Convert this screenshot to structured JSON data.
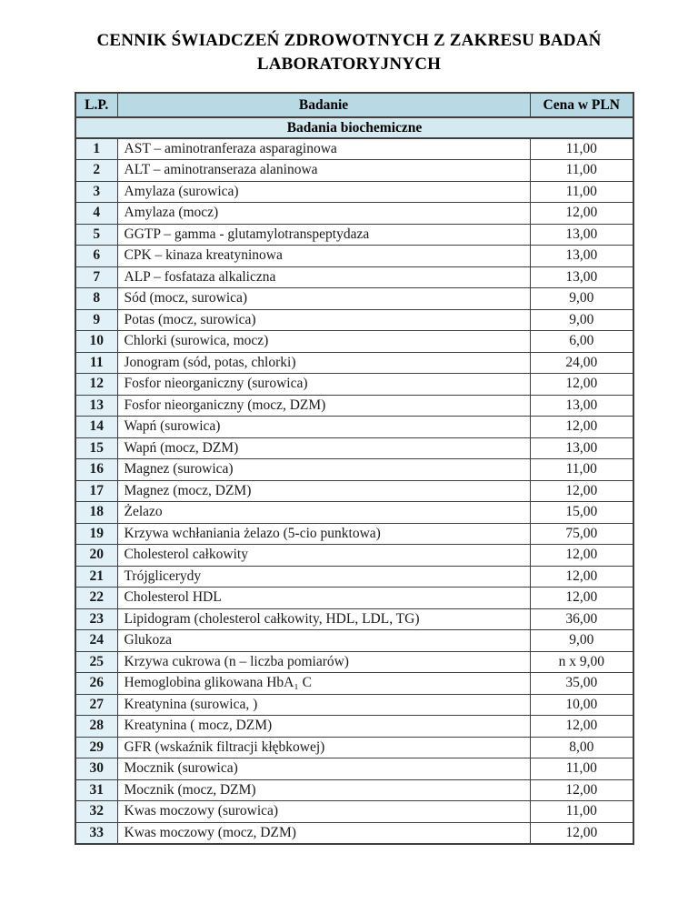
{
  "page": {
    "title_line1": "CENNIK ŚWIADCZEŃ ZDROWOTNYCH Z ZAKRESU BADAŃ",
    "title_line2": "LABORATORYJNYCH"
  },
  "table": {
    "columns": [
      "L.P.",
      "Badanie",
      "Cena w PLN"
    ],
    "section": "Badania biochemiczne",
    "rows": [
      {
        "lp": "1",
        "badanie": "AST – aminotranferaza asparaginowa",
        "cena": "11,00"
      },
      {
        "lp": "2",
        "badanie": "ALT – aminotranseraza alaninowa",
        "cena": "11,00"
      },
      {
        "lp": "3",
        "badanie": "Amylaza (surowica)",
        "cena": "11,00"
      },
      {
        "lp": "4",
        "badanie": "Amylaza (mocz)",
        "cena": "12,00"
      },
      {
        "lp": "5",
        "badanie": "GGTP – gamma - glutamylotranspeptydaza",
        "cena": "13,00"
      },
      {
        "lp": "6",
        "badanie": "CPK – kinaza kreatyninowa",
        "cena": "13,00"
      },
      {
        "lp": "7",
        "badanie": "ALP – fosfataza alkaliczna",
        "cena": "13,00"
      },
      {
        "lp": "8",
        "badanie": "Sód (mocz, surowica)",
        "cena": "9,00"
      },
      {
        "lp": "9",
        "badanie": "Potas (mocz, surowica)",
        "cena": "9,00"
      },
      {
        "lp": "10",
        "badanie": "Chlorki (surowica, mocz)",
        "cena": "6,00"
      },
      {
        "lp": "11",
        "badanie": "Jonogram (sód, potas, chlorki)",
        "cena": "24,00"
      },
      {
        "lp": "12",
        "badanie": "Fosfor nieorganiczny (surowica)",
        "cena": "12,00"
      },
      {
        "lp": "13",
        "badanie": "Fosfor nieorganiczny (mocz, DZM)",
        "cena": "13,00"
      },
      {
        "lp": "14",
        "badanie": "Wapń (surowica)",
        "cena": "12,00"
      },
      {
        "lp": "15",
        "badanie": "Wapń (mocz, DZM)",
        "cena": "13,00"
      },
      {
        "lp": "16",
        "badanie": "Magnez (surowica)",
        "cena": "11,00"
      },
      {
        "lp": "17",
        "badanie": "Magnez (mocz, DZM)",
        "cena": "12,00"
      },
      {
        "lp": "18",
        "badanie": "Żelazo",
        "cena": "15,00"
      },
      {
        "lp": "19",
        "badanie": "Krzywa wchłaniania żelazo (5-cio punktowa)",
        "cena": "75,00"
      },
      {
        "lp": "20",
        "badanie": "Cholesterol całkowity",
        "cena": "12,00"
      },
      {
        "lp": "21",
        "badanie": "Trójglicerydy",
        "cena": "12,00"
      },
      {
        "lp": "22",
        "badanie": "Cholesterol HDL",
        "cena": "12,00"
      },
      {
        "lp": "23",
        "badanie": "Lipidogram (cholesterol całkowity, HDL, LDL, TG)",
        "cena": "36,00"
      },
      {
        "lp": "24",
        "badanie": "Glukoza",
        "cena": "9,00"
      },
      {
        "lp": "25",
        "badanie": "Krzywa cukrowa (n – liczba pomiarów)",
        "cena": "n x 9,00"
      },
      {
        "lp": "26",
        "badanie": "Hemoglobina glikowana HbA₁ C",
        "cena": "35,00"
      },
      {
        "lp": "27",
        "badanie": "Kreatynina (surowica, )",
        "cena": "10,00"
      },
      {
        "lp": "28",
        "badanie": "Kreatynina ( mocz, DZM)",
        "cena": "12,00"
      },
      {
        "lp": "29",
        "badanie": "GFR (wskaźnik filtracji kłębkowej)",
        "cena": "8,00"
      },
      {
        "lp": "30",
        "badanie": "Mocznik (surowica)",
        "cena": "11,00"
      },
      {
        "lp": "31",
        "badanie": "Mocznik (mocz, DZM)",
        "cena": "12,00"
      },
      {
        "lp": "32",
        "badanie": "Kwas moczowy (surowica)",
        "cena": "11,00"
      },
      {
        "lp": "33",
        "badanie": "Kwas moczowy (mocz, DZM)",
        "cena": "12,00"
      }
    ]
  },
  "colors": {
    "header_bg": "#b9d9e5",
    "section_bg": "#d5e9f0",
    "lp_bg": "#e2f1f7",
    "border": "#3f3f3f"
  }
}
